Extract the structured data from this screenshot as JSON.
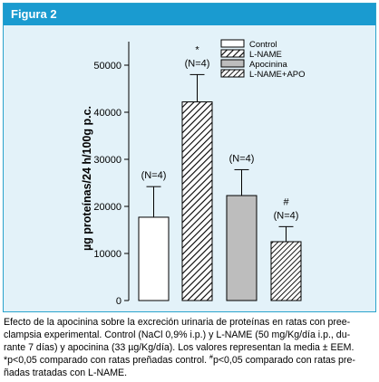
{
  "header": {
    "title": "Figura 2"
  },
  "chart_data": {
    "type": "bar",
    "title": "",
    "xlabel": "",
    "ylabel": "µg proteínas/24 h/100g p.c.",
    "ylim": [
      0,
      55000
    ],
    "yticks": [
      0,
      10000,
      20000,
      30000,
      40000,
      50000
    ],
    "categories": [
      "Control",
      "L-NAME",
      "Apocinina",
      "L-NAME+APO"
    ],
    "values": [
      17700,
      42200,
      22300,
      12500
    ],
    "errors": [
      6500,
      5800,
      5500,
      3200
    ],
    "n_labels": [
      "(N=4)",
      "(N=4)",
      "(N=4)",
      "(N=4)"
    ],
    "sig_marks": [
      "",
      "*",
      "",
      "#"
    ],
    "fills": [
      "white",
      "hatch",
      "#bdbdbd",
      "hatch-dense"
    ],
    "legend": {
      "placement": "top-right",
      "entries": [
        "Control",
        "L-NAME",
        "Apocinina",
        "L-NAME+APO"
      ]
    }
  },
  "caption": {
    "line1": "Efecto de la apocinina sobre la excreción urinaria de proteínas en ratas con pree-",
    "line2": "clampsia experimental. Control (NaCl 0,9% i.p.) y L-NAME (50 mg/Kg/día i.p., du-",
    "line3": "rante 7 días) y apocinina (33 µg/Kg/día). Los valores representan la media ± EEM.",
    "line4_mark": "*",
    "line4": "p<0,05 comparado con ratas preñadas control. ",
    "line4_sup": "#",
    "line4_rest": "p<0,05 comparado con ratas pre-",
    "line5": "ñadas tratadas con L-NAME."
  }
}
